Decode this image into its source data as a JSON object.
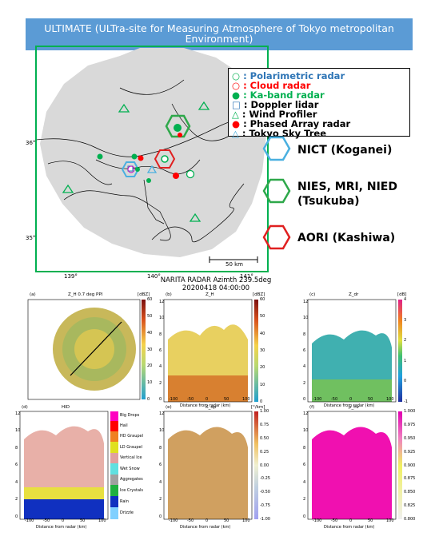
{
  "banner": {
    "line1": "ULTIMATE (ULTra-site for Measuring Atmosphere of Tokyo metropolitan",
    "line2": "Environment)"
  },
  "map": {
    "lat_labels": [
      "36°",
      "35°"
    ],
    "lon_labels": [
      "139°",
      "140°",
      "141°"
    ],
    "scale_label": "50 km"
  },
  "legend": [
    {
      "marker": "○",
      "text": ": Polarimetric radar",
      "color": "#2e75b6"
    },
    {
      "marker": "○",
      "text": ": Cloud radar",
      "color": "#ff0000"
    },
    {
      "marker": "●",
      "text": ": Ka-band radar",
      "color": "#00b050"
    },
    {
      "marker": "□",
      "text": ": Doppler lidar",
      "color": "#000000"
    },
    {
      "marker": "△",
      "text": ": Wind Profiler",
      "color": "#000000"
    },
    {
      "marker": "●",
      "text": ": Phased Array radar",
      "color": "#000000"
    },
    {
      "marker": "△",
      "text": ": Tokyo Sky Tree",
      "color": "#000000"
    }
  ],
  "sites": [
    {
      "label": "NICT (Koganei)",
      "color": "#4ab0e0"
    },
    {
      "label": "NIES, MRI, NIED",
      "label2": "(Tsukuba)",
      "color": "#2ea84a"
    },
    {
      "label": "AORI (Kashiwa)",
      "color": "#e02020"
    }
  ],
  "radar": {
    "title1": "NARITA RADAR Azimth 239.5deg",
    "title2": "20200418 04:00:00"
  },
  "panels": {
    "a": {
      "tag": "(a)",
      "title": "Z_H 0.7 deg PPI",
      "unit": "[dBZ]",
      "cbar": [
        "60",
        "50",
        "40",
        "30",
        "20",
        "10",
        "0"
      ]
    },
    "b": {
      "tag": "(b)",
      "title": "Z_H",
      "unit": "[dBZ]",
      "cbar": [
        "60",
        "50",
        "40",
        "30",
        "20",
        "10",
        "0"
      ]
    },
    "c": {
      "tag": "(c)",
      "title": "Z_dr",
      "unit": "[dB]",
      "cbar": [
        "4",
        "3",
        "2",
        "1",
        "0",
        "-1"
      ]
    },
    "d": {
      "tag": "(d)",
      "title": "HID",
      "classes": [
        "Big Drops",
        "Hail",
        "HD Graupel",
        "LD Graupel",
        "Vertical Ice",
        "Wet Snow",
        "Aggregates",
        "Ice Crystals",
        "Rain",
        "Drizzle"
      ]
    },
    "e": {
      "tag": "(e)",
      "title": "K_dp",
      "unit": "[°/km]",
      "cbar": [
        "1.00",
        "0.75",
        "0.50",
        "0.25",
        "0.00",
        "-0.25",
        "-0.50",
        "-0.75",
        "-1.00"
      ]
    },
    "f": {
      "tag": "(f)",
      "title": "ρ_hv",
      "cbar": [
        "1.000",
        "0.975",
        "0.950",
        "0.925",
        "0.900",
        "0.875",
        "0.850",
        "0.825",
        "0.800"
      ]
    }
  },
  "axes": {
    "xlabel": "Distance from radar (km)",
    "ylabel": "Height (km)",
    "xticks": [
      "-100",
      "-50",
      "0",
      "50",
      "100"
    ],
    "yticks": [
      "12",
      "10",
      "8",
      "6",
      "4",
      "2",
      "0"
    ]
  },
  "colors": {
    "banner": "#5b9bd5",
    "frame_green": "#00b050",
    "map_gray": "#d9d9d9"
  }
}
